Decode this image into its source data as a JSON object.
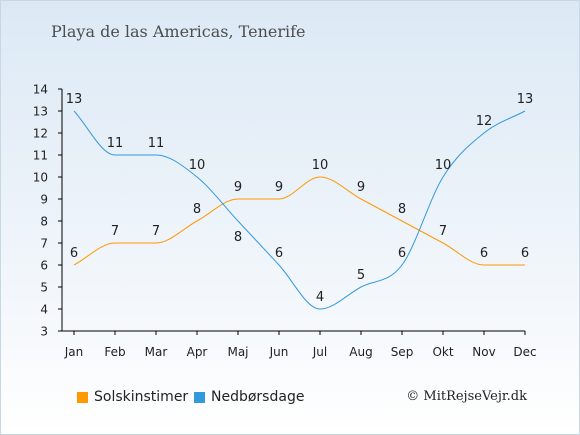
{
  "title": "Playa de las Americas, Tenerife",
  "legend": {
    "sun_label": "Solskinstimer",
    "rain_label": "Nedbørsdage"
  },
  "credit": "© MitRejseVejr.dk",
  "colors": {
    "sun": "#ff9900",
    "rain": "#3399dd",
    "axis": "#000000",
    "text": "#222222"
  },
  "chart_data": {
    "type": "line",
    "categories": [
      "Jan",
      "Feb",
      "Mar",
      "Apr",
      "Maj",
      "Jun",
      "Jul",
      "Aug",
      "Sep",
      "Okt",
      "Nov",
      "Dec"
    ],
    "series": [
      {
        "name": "Solskinstimer",
        "values": [
          6,
          7,
          7,
          8,
          9,
          9,
          10,
          9,
          8,
          7,
          6,
          6
        ]
      },
      {
        "name": "Nedbørsdage",
        "values": [
          13,
          11,
          11,
          10,
          8,
          6,
          4,
          5,
          6,
          10,
          12,
          13
        ]
      }
    ],
    "ylim": [
      3,
      14
    ],
    "yticks": [
      3,
      4,
      5,
      6,
      7,
      8,
      9,
      10,
      11,
      12,
      13,
      14
    ],
    "grid": false,
    "legend_position": "bottom"
  }
}
